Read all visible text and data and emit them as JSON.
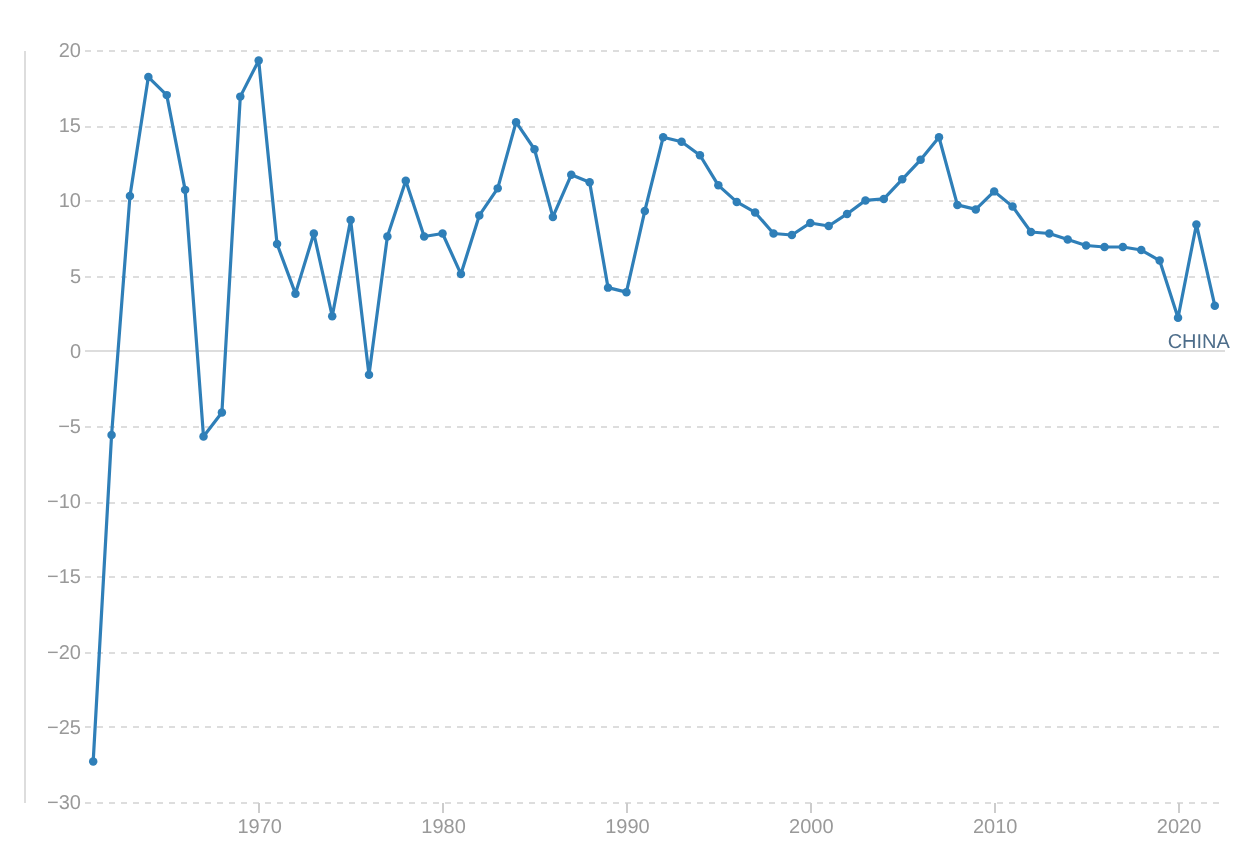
{
  "chart_data": {
    "type": "line",
    "x": [
      1961,
      1962,
      1963,
      1964,
      1965,
      1966,
      1967,
      1968,
      1969,
      1970,
      1971,
      1972,
      1973,
      1974,
      1975,
      1976,
      1977,
      1978,
      1979,
      1980,
      1981,
      1982,
      1983,
      1984,
      1985,
      1986,
      1987,
      1988,
      1989,
      1990,
      1991,
      1992,
      1993,
      1994,
      1995,
      1996,
      1997,
      1998,
      1999,
      2000,
      2001,
      2002,
      2003,
      2004,
      2005,
      2006,
      2007,
      2008,
      2009,
      2010,
      2011,
      2012,
      2013,
      2014,
      2015,
      2016,
      2017,
      2018,
      2019,
      2020,
      2021,
      2022
    ],
    "series": [
      {
        "name": "CHINA",
        "color": "#2f7fb8",
        "values": [
          -27.3,
          -5.6,
          10.3,
          18.2,
          17.0,
          10.7,
          -5.7,
          -4.1,
          16.9,
          19.3,
          7.1,
          3.8,
          7.8,
          2.3,
          8.7,
          -1.6,
          7.6,
          11.3,
          7.6,
          7.8,
          5.1,
          9.0,
          10.8,
          15.2,
          13.4,
          8.9,
          11.7,
          11.2,
          4.2,
          3.9,
          9.3,
          14.2,
          13.9,
          13.0,
          11.0,
          9.9,
          9.2,
          7.8,
          7.7,
          8.5,
          8.3,
          9.1,
          10.0,
          10.1,
          11.4,
          12.7,
          14.2,
          9.7,
          9.4,
          10.6,
          9.6,
          7.9,
          7.8,
          7.4,
          7.0,
          6.9,
          6.9,
          6.7,
          6.0,
          2.2,
          8.4,
          3.0
        ]
      }
    ],
    "xlim": [
      1960.5,
      2022.5
    ],
    "xticks": [
      1970,
      1980,
      1990,
      2000,
      2010,
      2020
    ],
    "ylim": [
      -30,
      20
    ],
    "yticks": [
      -30,
      -25,
      -20,
      -15,
      -10,
      -5,
      0,
      5,
      10,
      15,
      20
    ],
    "grid": "y",
    "marker": "circle",
    "line_style": "solid",
    "legend": false
  }
}
